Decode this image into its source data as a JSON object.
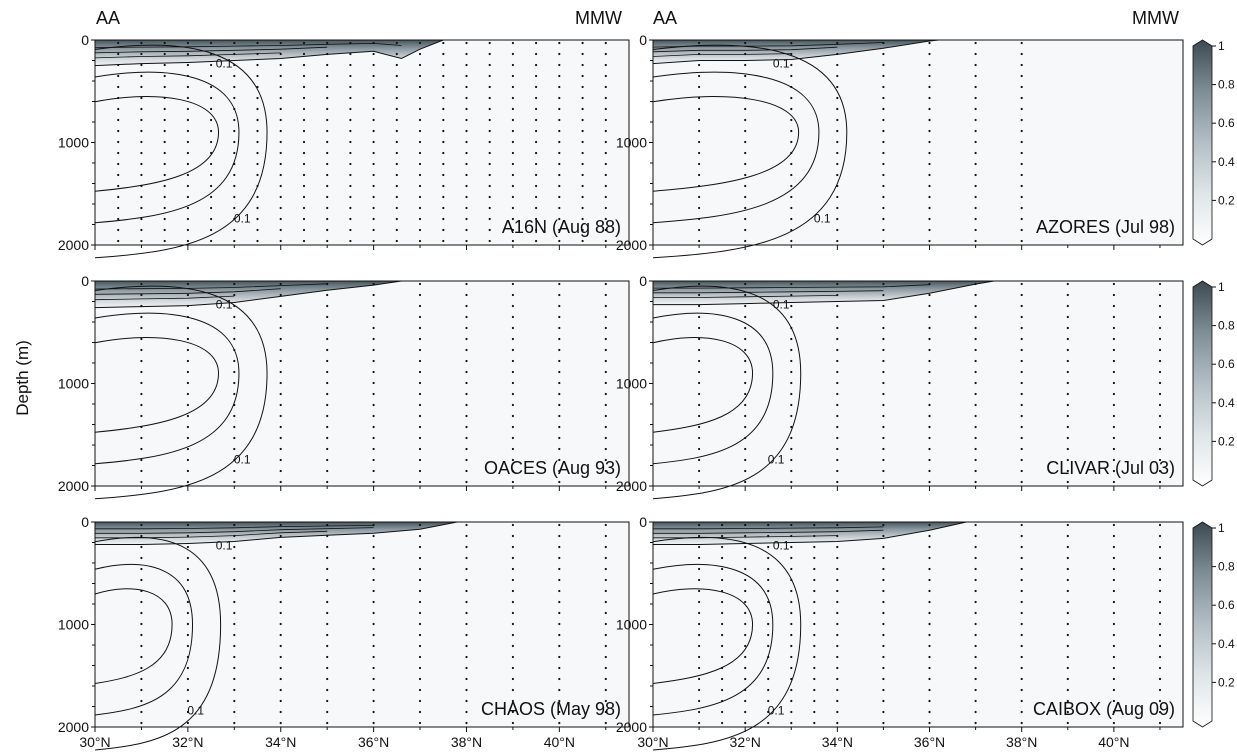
{
  "figure": {
    "ylabel": "Depth (m)",
    "left_label": "AA",
    "right_label": "MMW",
    "contour_label": "0.1"
  },
  "colorbar": {
    "ticks": [
      "1",
      "0.8",
      "0.6",
      "0.4",
      "0.2"
    ],
    "range": [
      0,
      1
    ],
    "colors": [
      "#ffffff",
      "#dfe5e8",
      "#b3bfc5",
      "#86949c",
      "#5a6970",
      "#3d4a52"
    ]
  },
  "chart_data": [
    {
      "type": "heatmap",
      "title": "A16N (Aug 88)",
      "xlim": [
        30,
        41.5
      ],
      "ylim": [
        2000,
        0
      ],
      "x_ticks": [
        "30°N",
        "32°N",
        "34°N",
        "36°N",
        "38°N",
        "40°N"
      ],
      "y_ticks": [
        "0",
        "1000",
        "2000"
      ],
      "grid": false,
      "surface_layer": [
        [
          30,
          250
        ],
        [
          31,
          230
        ],
        [
          32,
          220
        ],
        [
          33,
          200
        ],
        [
          34,
          180
        ],
        [
          35,
          140
        ],
        [
          36,
          110
        ],
        [
          36.6,
          180
        ],
        [
          37,
          90
        ],
        [
          37.5,
          0
        ]
      ],
      "intermediate_core": {
        "center_lat": 32,
        "center_depth": 900,
        "max": 0.3
      },
      "stations": [
        30.5,
        31,
        31.5,
        32,
        32.5,
        33,
        33.5,
        34,
        34.5,
        35,
        35.5,
        36,
        36.5,
        37,
        37.5,
        38,
        38.5,
        39,
        39.5,
        40,
        40.5,
        41
      ]
    },
    {
      "type": "heatmap",
      "title": "AZORES (Jul 98)",
      "xlim": [
        30,
        41.5
      ],
      "ylim": [
        2000,
        0
      ],
      "x_ticks": [
        "30°N",
        "32°N",
        "34°N",
        "36°N",
        "38°N",
        "40°N"
      ],
      "y_ticks": [
        "0",
        "1000",
        "2000"
      ],
      "grid": false,
      "surface_layer": [
        [
          30,
          230
        ],
        [
          31,
          200
        ],
        [
          32,
          200
        ],
        [
          33,
          190
        ],
        [
          34,
          140
        ],
        [
          35,
          80
        ],
        [
          36,
          10
        ],
        [
          36.2,
          0
        ]
      ],
      "intermediate_core": {
        "center_lat": 32.5,
        "center_depth": 900,
        "max": 0.3
      },
      "stations": [
        31,
        32,
        33,
        34,
        35,
        36,
        37,
        38
      ]
    },
    {
      "type": "heatmap",
      "title": "OACES (Aug 93)",
      "xlim": [
        30,
        41.5
      ],
      "ylim": [
        2000,
        0
      ],
      "x_ticks": [
        "30°N",
        "32°N",
        "34°N",
        "36°N",
        "38°N",
        "40°N"
      ],
      "y_ticks": [
        "0",
        "1000",
        "2000"
      ],
      "grid": false,
      "surface_layer": [
        [
          30,
          260
        ],
        [
          31,
          250
        ],
        [
          32,
          240
        ],
        [
          33,
          210
        ],
        [
          34,
          150
        ],
        [
          35,
          90
        ],
        [
          36,
          40
        ],
        [
          36.6,
          0
        ]
      ],
      "intermediate_core": {
        "center_lat": 32,
        "center_depth": 900,
        "max": 0.3
      },
      "stations": [
        31,
        32,
        33,
        34,
        35,
        36,
        37,
        38,
        39,
        40,
        41
      ]
    },
    {
      "type": "heatmap",
      "title": "CLIVAR (Jul 03)",
      "xlim": [
        30,
        41.5
      ],
      "ylim": [
        2000,
        0
      ],
      "x_ticks": [
        "30°N",
        "32°N",
        "34°N",
        "36°N",
        "38°N",
        "40°N"
      ],
      "y_ticks": [
        "0",
        "1000",
        "2000"
      ],
      "grid": false,
      "surface_layer": [
        [
          30,
          230
        ],
        [
          31,
          230
        ],
        [
          32,
          220
        ],
        [
          33,
          210
        ],
        [
          34,
          200
        ],
        [
          35,
          190
        ],
        [
          36,
          120
        ],
        [
          37,
          30
        ],
        [
          37.4,
          0
        ]
      ],
      "intermediate_core": {
        "center_lat": 31.5,
        "center_depth": 900,
        "max": 0.3
      },
      "stations": [
        31,
        32,
        33,
        34,
        35,
        36,
        37,
        38,
        39,
        40,
        41
      ]
    },
    {
      "type": "heatmap",
      "title": "CHAOS (May 98)",
      "xlim": [
        30,
        41.5
      ],
      "ylim": [
        2000,
        0
      ],
      "x_ticks": [
        "30°N",
        "32°N",
        "34°N",
        "36°N",
        "38°N",
        "40°N"
      ],
      "y_ticks": [
        "0",
        "1000",
        "2000"
      ],
      "grid": false,
      "surface_layer": [
        [
          30,
          220
        ],
        [
          31,
          220
        ],
        [
          32,
          210
        ],
        [
          33,
          190
        ],
        [
          34,
          150
        ],
        [
          35,
          130
        ],
        [
          36,
          110
        ],
        [
          37,
          70
        ],
        [
          37.8,
          0
        ]
      ],
      "intermediate_core": {
        "center_lat": 31,
        "center_depth": 1000,
        "max": 0.3
      },
      "stations": [
        31,
        32,
        33,
        34,
        35,
        36,
        37,
        38,
        39,
        40,
        41
      ]
    },
    {
      "type": "heatmap",
      "title": "CAIBOX (Aug 09)",
      "xlim": [
        30,
        41.5
      ],
      "ylim": [
        2000,
        0
      ],
      "x_ticks": [
        "30°N",
        "32°N",
        "34°N",
        "36°N",
        "38°N",
        "40°N"
      ],
      "y_ticks": [
        "0",
        "1000",
        "2000"
      ],
      "grid": false,
      "surface_layer": [
        [
          30,
          220
        ],
        [
          31,
          220
        ],
        [
          32,
          210
        ],
        [
          33,
          200
        ],
        [
          34,
          190
        ],
        [
          35,
          160
        ],
        [
          36,
          80
        ],
        [
          36.8,
          0
        ]
      ],
      "intermediate_core": {
        "center_lat": 31.5,
        "center_depth": 1000,
        "max": 0.3
      },
      "stations": [
        31,
        31.5,
        32,
        32.5,
        33,
        33.5,
        34,
        35,
        36,
        37,
        38,
        39,
        40,
        41
      ]
    }
  ]
}
